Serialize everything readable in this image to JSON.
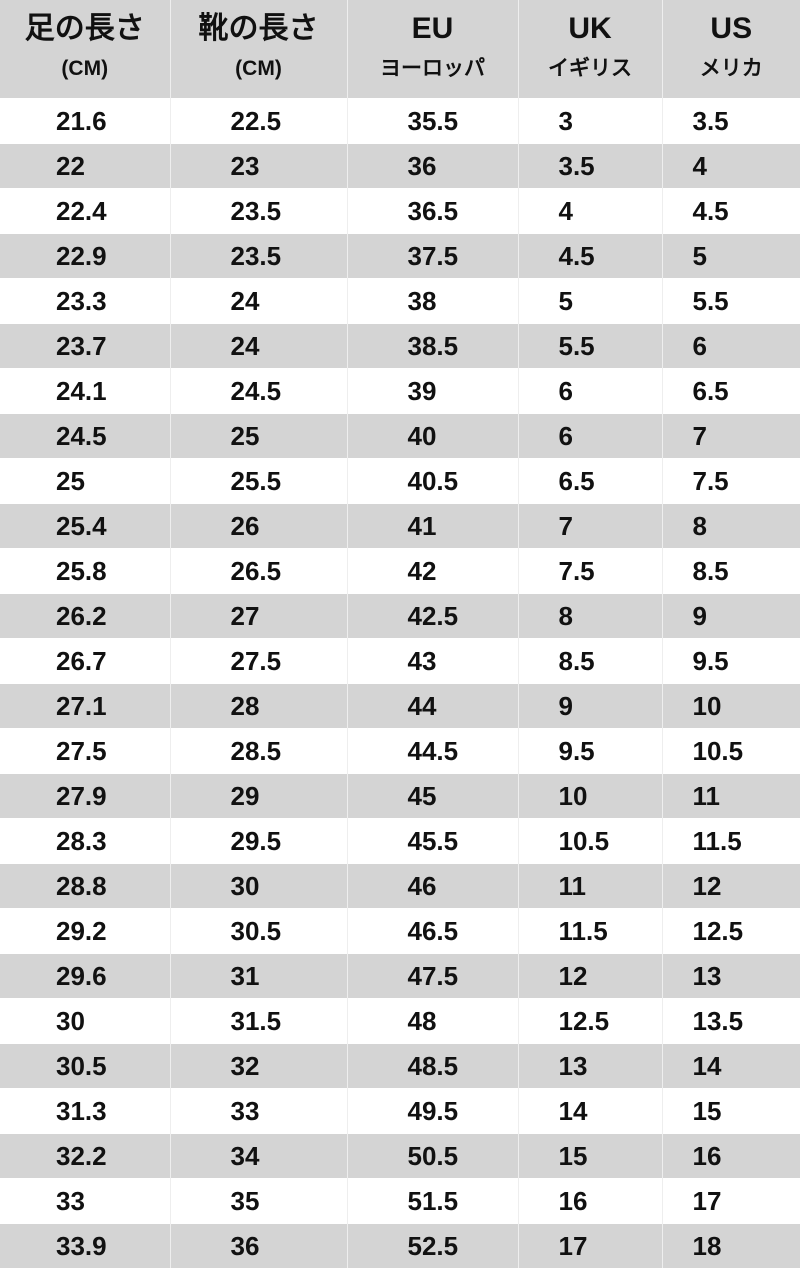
{
  "headers": [
    {
      "title": "足の長さ",
      "sub": "(CM)"
    },
    {
      "title": "靴の長さ",
      "sub": "(CM)"
    },
    {
      "title": "EU",
      "sub": "ヨーロッパ"
    },
    {
      "title": "UK",
      "sub": "イギリス"
    },
    {
      "title": "US",
      "sub": "メリカ"
    }
  ],
  "rows": [
    [
      "21.6",
      "22.5",
      "35.5",
      "3",
      "3.5"
    ],
    [
      "22",
      "23",
      "36",
      "3.5",
      "4"
    ],
    [
      "22.4",
      "23.5",
      "36.5",
      "4",
      "4.5"
    ],
    [
      "22.9",
      "23.5",
      "37.5",
      "4.5",
      "5"
    ],
    [
      "23.3",
      "24",
      "38",
      "5",
      "5.5"
    ],
    [
      "23.7",
      "24",
      "38.5",
      "5.5",
      "6"
    ],
    [
      "24.1",
      "24.5",
      "39",
      "6",
      "6.5"
    ],
    [
      "24.5",
      "25",
      "40",
      "6",
      "7"
    ],
    [
      "25",
      "25.5",
      "40.5",
      "6.5",
      "7.5"
    ],
    [
      "25.4",
      "26",
      "41",
      "7",
      "8"
    ],
    [
      "25.8",
      "26.5",
      "42",
      "7.5",
      "8.5"
    ],
    [
      "26.2",
      "27",
      "42.5",
      "8",
      "9"
    ],
    [
      "26.7",
      "27.5",
      "43",
      "8.5",
      "9.5"
    ],
    [
      "27.1",
      "28",
      "44",
      "9",
      "10"
    ],
    [
      "27.5",
      "28.5",
      "44.5",
      "9.5",
      "10.5"
    ],
    [
      "27.9",
      "29",
      "45",
      "10",
      "11"
    ],
    [
      "28.3",
      "29.5",
      "45.5",
      "10.5",
      "11.5"
    ],
    [
      "28.8",
      "30",
      "46",
      "11",
      "12"
    ],
    [
      "29.2",
      "30.5",
      "46.5",
      "11.5",
      "12.5"
    ],
    [
      "29.6",
      "31",
      "47.5",
      "12",
      "13"
    ],
    [
      "30",
      "31.5",
      "48",
      "12.5",
      "13.5"
    ],
    [
      "30.5",
      "32",
      "48.5",
      "13",
      "14"
    ],
    [
      "31.3",
      "33",
      "49.5",
      "14",
      "15"
    ],
    [
      "32.2",
      "34",
      "50.5",
      "15",
      "16"
    ],
    [
      "33",
      "35",
      "51.5",
      "16",
      "17"
    ],
    [
      "33.9",
      "36",
      "52.5",
      "17",
      "18"
    ]
  ],
  "colors": {
    "stripe": "#d4d4d4",
    "header": "#d4d4d4"
  }
}
